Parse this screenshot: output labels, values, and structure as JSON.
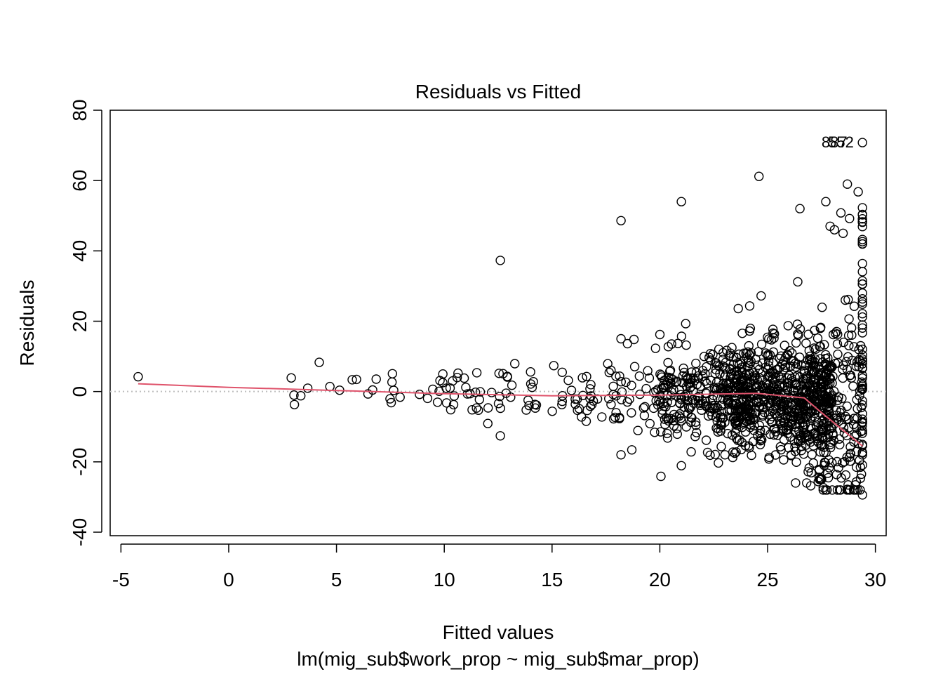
{
  "chart_data": {
    "type": "scatter",
    "title": "Residuals vs Fitted",
    "xlabel": "Fitted values",
    "ylabel": "Residuals",
    "subtitle": "lm(mig_sub$work_prop ~ mig_sub$mar_prop)",
    "xlim": [
      -5.5,
      30.5
    ],
    "ylim": [
      -41,
      80
    ],
    "x_ticks": [
      -5,
      0,
      5,
      10,
      15,
      20,
      25,
      30
    ],
    "y_ticks": [
      -40,
      -20,
      0,
      20,
      40,
      60,
      80
    ],
    "x_tick_labels": [
      "-5",
      "0",
      "5",
      "10",
      "15",
      "20",
      "25",
      "30"
    ],
    "y_tick_labels": [
      "-40",
      "-20",
      "0",
      "20",
      "40",
      "60",
      "80"
    ],
    "reference_line_y": 0,
    "colors": {
      "points": "#000000",
      "smooth": "#DF536B",
      "reference": "#bebebe"
    },
    "smooth_line": {
      "x": [
        -4.2,
        0,
        5,
        10,
        15,
        20,
        24.5,
        26.7,
        27.5,
        28.5,
        29.4
      ],
      "y": [
        2.2,
        1.2,
        0.3,
        -0.6,
        -1.2,
        -1.0,
        -0.5,
        -1.8,
        -6.0,
        -11.0,
        -15.5
      ]
    },
    "outlier_labels": [
      {
        "text": "887",
        "x": 28.1,
        "y": 71
      },
      {
        "text": "552",
        "x": 28.4,
        "y": 71
      }
    ],
    "outliers": [
      {
        "x": 29.4,
        "y": 70.8
      },
      {
        "x": 24.6,
        "y": 61.2
      },
      {
        "x": 21.0,
        "y": 54.0
      },
      {
        "x": 27.7,
        "y": 54.0
      },
      {
        "x": 26.5,
        "y": 52.0
      },
      {
        "x": 18.2,
        "y": 48.6
      },
      {
        "x": 12.6,
        "y": 37.3
      },
      {
        "x": 28.7,
        "y": 59.0
      },
      {
        "x": 29.2,
        "y": 56.8
      },
      {
        "x": 28.4,
        "y": 50.8
      },
      {
        "x": 28.8,
        "y": 49.2
      },
      {
        "x": 28.1,
        "y": 46.0
      },
      {
        "x": 27.9,
        "y": 47.0
      },
      {
        "x": 28.5,
        "y": 45.0
      },
      {
        "x": 21.2,
        "y": 19.3
      },
      {
        "x": 18.2,
        "y": 15.0
      },
      {
        "x": 18.8,
        "y": 14.8
      },
      {
        "x": 18.5,
        "y": 13.6
      },
      {
        "x": 19.8,
        "y": 12.3
      },
      {
        "x": 24.7,
        "y": 27.2
      },
      {
        "x": 26.4,
        "y": 31.2
      },
      {
        "x": 4.2,
        "y": 8.3
      },
      {
        "x": -4.2,
        "y": 4.2
      },
      {
        "x": 12.6,
        "y": -12.6
      },
      {
        "x": 18.2,
        "y": -18.0
      },
      {
        "x": 18.7,
        "y": -16.6
      },
      {
        "x": 21.0,
        "y": -21.1
      },
      {
        "x": 29.4,
        "y": -29.4
      },
      {
        "x": 27.0,
        "y": -26.8
      },
      {
        "x": 28.7,
        "y": -27.8
      }
    ]
  }
}
